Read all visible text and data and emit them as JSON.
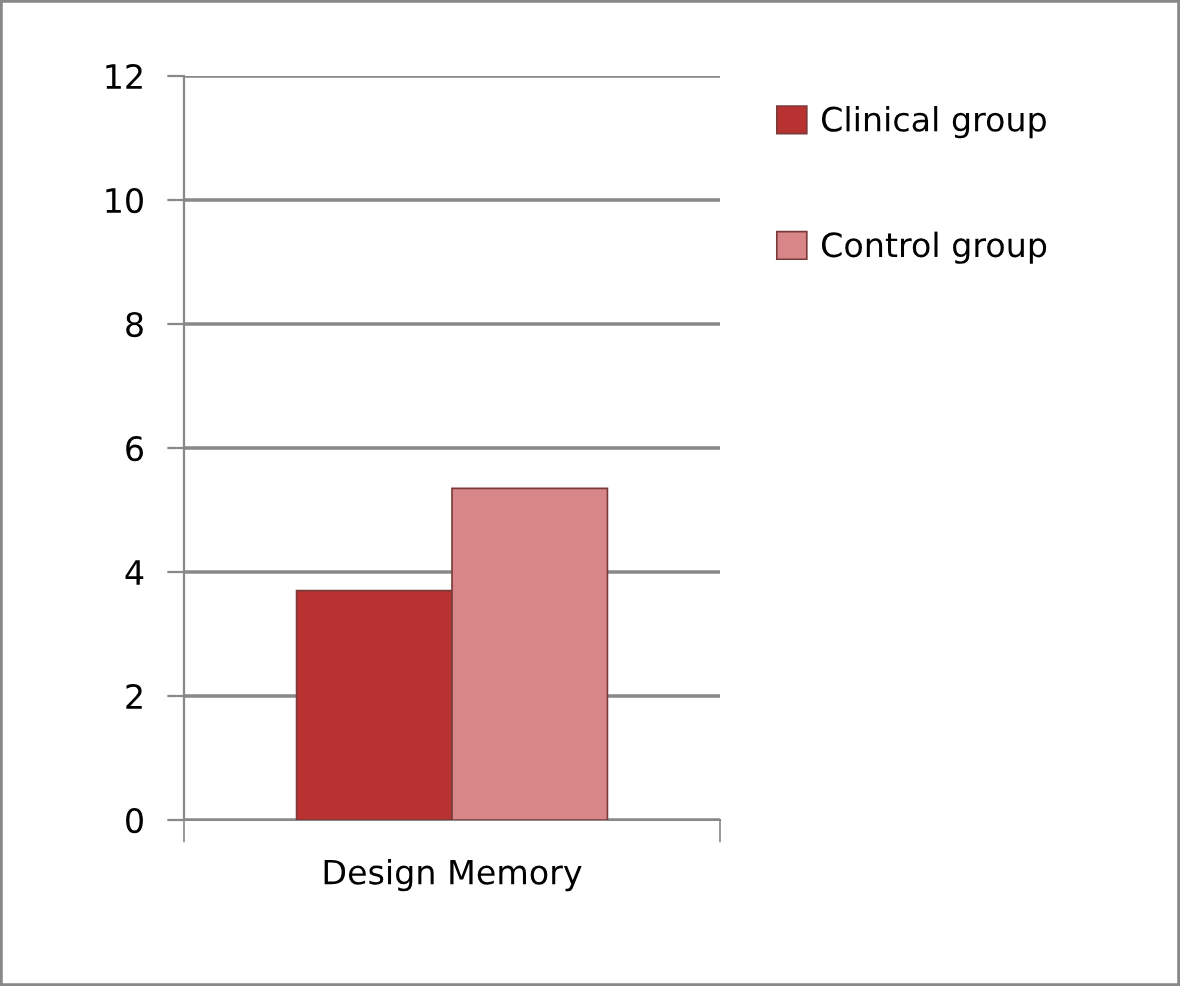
{
  "chart_data": {
    "type": "bar",
    "categories": [
      "Design Memory"
    ],
    "series": [
      {
        "name": "Clinical group",
        "color": "#b83232",
        "values": [
          3.7
        ]
      },
      {
        "name": "Control group",
        "color": "#d98688",
        "values": [
          5.35
        ]
      }
    ],
    "ylim": [
      0,
      12
    ],
    "yticks": [
      0,
      2,
      4,
      6,
      8,
      10,
      12
    ],
    "grid": "y",
    "legend": "right"
  }
}
